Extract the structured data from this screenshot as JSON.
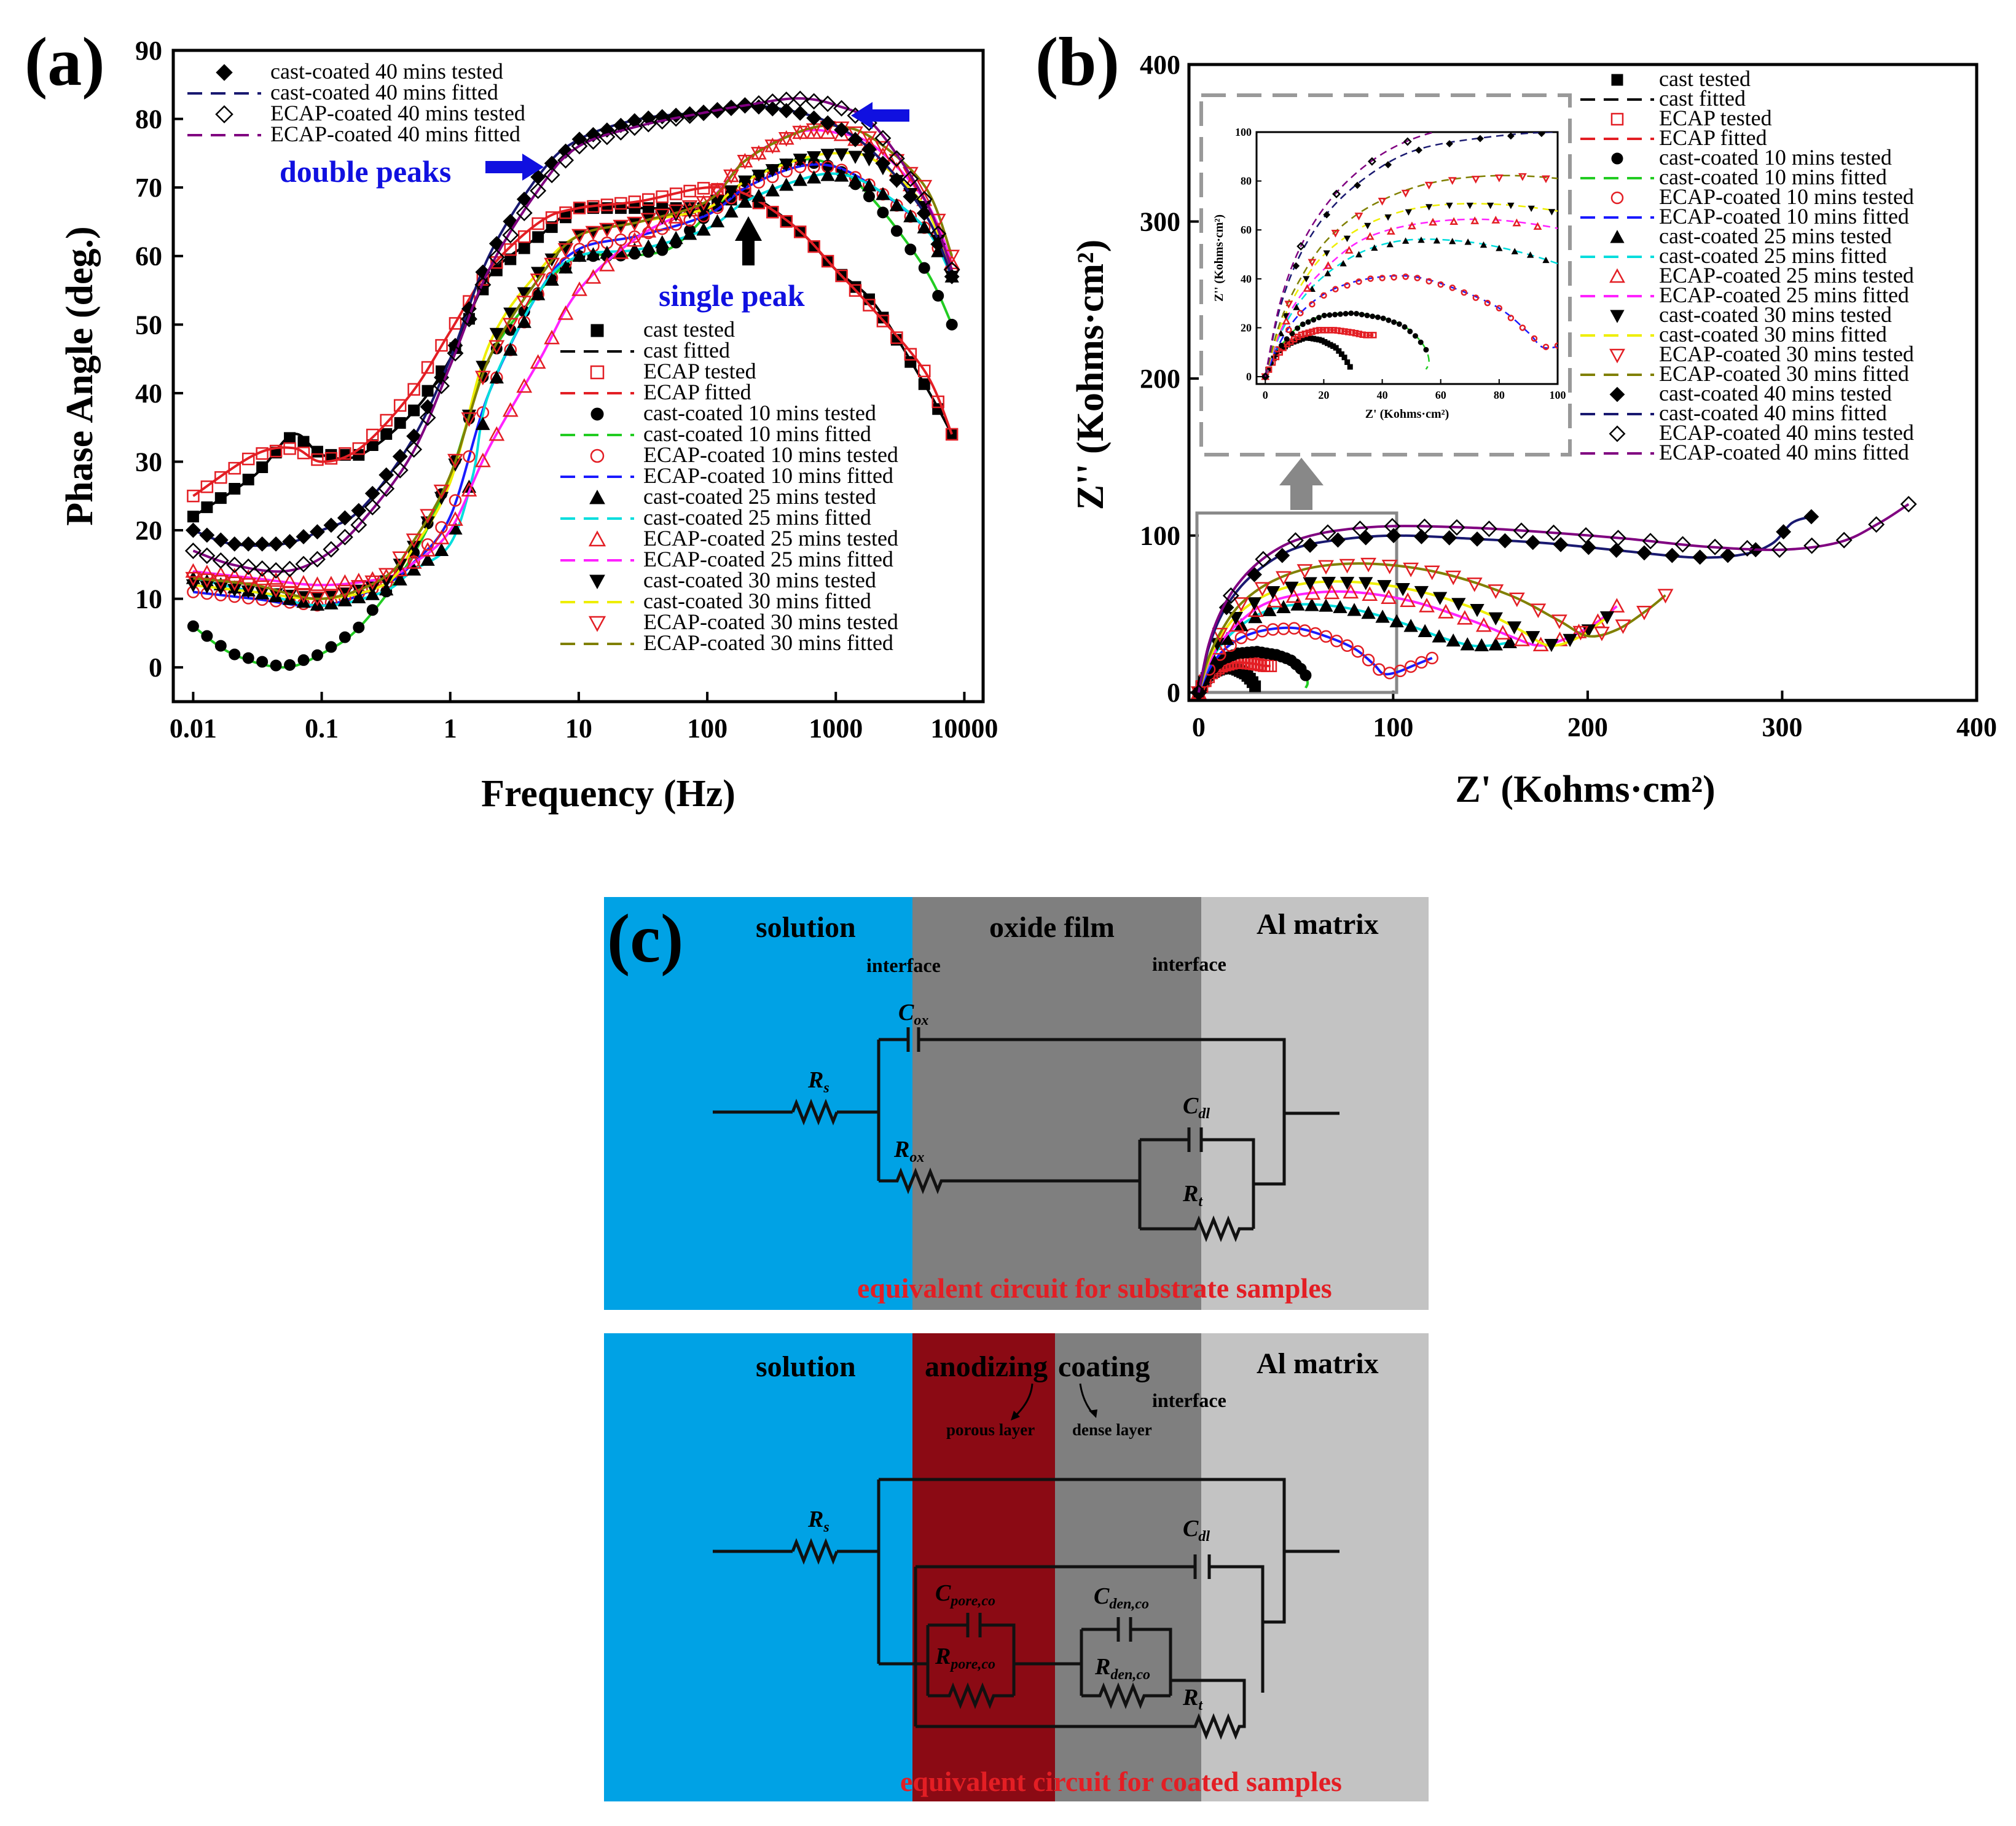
{
  "panels": {
    "a": "(a)",
    "b": "(b)",
    "c": "(c)"
  },
  "chart_data": [
    {
      "id": "a",
      "type": "line",
      "title": "",
      "xlabel": "Frequency (Hz)",
      "ylabel": "Phase  Angle (deg.)",
      "xscale": "log",
      "xlim": [
        0.007,
        14000
      ],
      "ylim": [
        -5,
        90
      ],
      "xticks": [
        {
          "v": 0.01,
          "label": "0.01"
        },
        {
          "v": 0.1,
          "label": "0.1"
        },
        {
          "v": 1,
          "label": "1"
        },
        {
          "v": 10,
          "label": "10"
        },
        {
          "v": 100,
          "label": "100"
        },
        {
          "v": 1000,
          "label": "1000"
        },
        {
          "v": 10000,
          "label": "10000"
        }
      ],
      "yticks": [
        0,
        10,
        20,
        30,
        40,
        50,
        60,
        70,
        80,
        90
      ],
      "legend_top": [
        "cast-coated 40 mins tested",
        "cast-coated 40 mins fitted",
        "ECAP-coated 40 mins tested",
        "ECAP-coated 40 mins fitted"
      ],
      "legend_bottom": [
        "cast tested",
        "cast fitted",
        "ECAP tested",
        "ECAP fitted",
        "cast-coated 10 mins tested",
        "cast-coated 10 mins fitted",
        "ECAP-coated 10 mins tested",
        "ECAP-coated 10 mins fitted",
        "cast-coated 25 mins tested",
        "cast-coated 25 mins fitted",
        "ECAP-coated 25 mins tested",
        "ECAP-coated 25 mins fitted",
        "cast-coated 30 mins tested",
        "cast-coated 30 mins fitted",
        "ECAP-coated 30 mins tested",
        "ECAP-coated 30 mins fitted"
      ],
      "annotations": [
        {
          "text": "double peaks",
          "x": 4,
          "y": 73
        },
        {
          "text": "single peak",
          "x": 200,
          "y": 55
        }
      ],
      "series": [
        {
          "name": "cast",
          "marker": "square-filled",
          "mcolor": "#000000",
          "fcolor": "#000000",
          "fitdash": true,
          "x": [
            0.01,
            0.03,
            0.06,
            0.1,
            0.2,
            0.5,
            1,
            2,
            5,
            10,
            30,
            100,
            200,
            500,
            1000,
            2000,
            5000,
            8000
          ],
          "y": [
            22,
            28,
            34,
            31,
            31,
            37,
            45,
            57,
            63,
            67,
            67,
            67,
            69,
            64,
            58,
            53,
            41,
            34
          ]
        },
        {
          "name": "ECAP",
          "marker": "square-open",
          "mcolor": "#e31e24",
          "fcolor": "#e31e24",
          "fitdash": true,
          "x": [
            0.01,
            0.03,
            0.06,
            0.1,
            0.2,
            0.5,
            1,
            2,
            5,
            10,
            30,
            100,
            200,
            500,
            1000,
            2000,
            5000,
            8000
          ],
          "y": [
            25,
            31,
            32,
            30,
            32,
            40,
            49,
            58,
            65,
            67,
            68,
            70,
            69,
            64,
            58,
            52,
            43,
            34
          ]
        },
        {
          "name": "cast-coated 10 mins",
          "marker": "circle-filled",
          "mcolor": "#000000",
          "fcolor": "#22cc22",
          "fitdash": false,
          "x": [
            0.01,
            0.02,
            0.05,
            0.1,
            0.2,
            0.5,
            1,
            2,
            5,
            10,
            20,
            50,
            100,
            200,
            500,
            1000,
            2000,
            5000,
            8000
          ],
          "y": [
            6,
            2,
            0,
            2,
            6,
            16,
            28,
            45,
            55,
            60,
            60,
            61,
            66,
            71,
            74,
            73,
            68,
            58,
            50
          ]
        },
        {
          "name": "ECAP-coated 10 mins",
          "marker": "circle-open",
          "mcolor": "#e31e24",
          "fcolor": "#1a1aff",
          "fitdash": true,
          "x": [
            0.01,
            0.03,
            0.1,
            0.3,
            0.5,
            1,
            2,
            5,
            10,
            30,
            100,
            200,
            500,
            1000,
            2000,
            5000,
            8000
          ],
          "y": [
            11,
            10,
            9,
            12,
            15,
            22,
            40,
            55,
            61,
            63,
            66,
            70,
            73,
            73,
            70,
            64,
            58
          ]
        },
        {
          "name": "cast-coated 25 mins",
          "marker": "triangle-filled",
          "mcolor": "#000000",
          "fcolor": "#00dddd",
          "fitdash": true,
          "x": [
            0.01,
            0.03,
            0.1,
            0.3,
            0.5,
            1,
            1.5,
            2,
            5,
            10,
            30,
            100,
            200,
            500,
            1000,
            2000,
            5000,
            8000
          ],
          "y": [
            13,
            11,
            9,
            11,
            14,
            18,
            28,
            40,
            55,
            60,
            61,
            64,
            68,
            71,
            72,
            70,
            64,
            57
          ]
        },
        {
          "name": "ECAP-coated 25 mins",
          "marker": "triangle-open",
          "mcolor": "#e31e24",
          "fcolor": "#ff22ff",
          "fitdash": true,
          "x": [
            0.01,
            0.03,
            0.1,
            0.3,
            0.5,
            1,
            2,
            5,
            10,
            30,
            100,
            200,
            500,
            1000,
            2000,
            5000,
            8000
          ],
          "y": [
            14,
            13,
            12,
            13,
            15,
            20,
            32,
            45,
            55,
            63,
            68,
            74,
            78,
            78,
            76,
            68,
            59
          ]
        },
        {
          "name": "cast-coated 30 mins",
          "marker": "triangle-down-filled",
          "mcolor": "#000000",
          "fcolor": "#eeee00",
          "fitdash": false,
          "x": [
            0.01,
            0.03,
            0.1,
            0.3,
            0.5,
            1,
            2,
            5,
            10,
            30,
            100,
            200,
            500,
            1000,
            2000,
            5000,
            8000
          ],
          "y": [
            12,
            11,
            10,
            12,
            17,
            27,
            47,
            58,
            63,
            65,
            67,
            71,
            74,
            75,
            74,
            67,
            57
          ]
        },
        {
          "name": "ECAP-coated 30 mins",
          "marker": "triangle-down-open",
          "mcolor": "#e31e24",
          "fcolor": "#808000",
          "fitdash": true,
          "x": [
            0.01,
            0.03,
            0.1,
            0.3,
            0.5,
            1,
            2,
            5,
            10,
            30,
            100,
            200,
            500,
            1000,
            2000,
            5000,
            8000
          ],
          "y": [
            13,
            12,
            10,
            13,
            18,
            28,
            45,
            57,
            63,
            65,
            68,
            74,
            78,
            79,
            77,
            70,
            60
          ]
        },
        {
          "name": "cast-coated 40 mins",
          "marker": "diamond-filled",
          "mcolor": "#000000",
          "fcolor": "#191970",
          "fitdash": true,
          "x": [
            0.01,
            0.02,
            0.05,
            0.1,
            0.2,
            0.5,
            1,
            2,
            5,
            10,
            30,
            100,
            200,
            500,
            1000,
            2000,
            5000,
            8000
          ],
          "y": [
            20,
            18,
            18,
            20,
            23,
            33,
            45,
            60,
            72,
            77,
            80,
            81,
            82,
            81,
            79,
            75,
            66,
            57
          ]
        },
        {
          "name": "ECAP-coated 40 mins",
          "marker": "diamond-open",
          "mcolor": "#000000",
          "fcolor": "#800080",
          "fitdash": true,
          "x": [
            0.01,
            0.02,
            0.05,
            0.1,
            0.2,
            0.5,
            1,
            2,
            5,
            10,
            30,
            100,
            200,
            500,
            1000,
            2000,
            5000,
            8000
          ],
          "y": [
            17,
            15,
            14,
            16,
            21,
            31,
            44,
            58,
            70,
            76,
            79,
            81,
            82,
            83,
            82,
            79,
            68,
            58
          ]
        }
      ]
    },
    {
      "id": "b",
      "type": "scatter",
      "title": "",
      "xlabel": "Z' (Kohms·cm²)",
      "ylabel": "Z'' (Kohms·cm²)",
      "xlim": [
        -5,
        400
      ],
      "ylim": [
        -5,
        400
      ],
      "xticks": [
        0,
        100,
        200,
        300,
        400
      ],
      "yticks": [
        0,
        100,
        200,
        300,
        400
      ],
      "legend": [
        "cast tested",
        "cast fitted",
        "ECAP tested",
        "ECAP fitted",
        "cast-coated 10 mins tested",
        "cast-coated 10 mins fitted",
        "ECAP-coated 10 mins tested",
        "ECAP-coated 10 mins fitted",
        "cast-coated 25 mins tested",
        "cast-coated 25 mins fitted",
        "ECAP-coated 25 mins tested",
        "ECAP-coated 25 mins fitted",
        "cast-coated 30 mins tested",
        "cast-coated 30 mins fitted",
        "ECAP-coated 30 mins tested",
        "ECAP-coated 30 mins fitted",
        "cast-coated 40 mins tested",
        "cast-coated 40 mins fitted",
        "ECAP-coated 40 mins tested",
        "ECAP-coated 40 mins fitted"
      ],
      "inset": {
        "xlabel": "Z' (Kohms·cm²)",
        "ylabel": "Z'' (Kohms·cm²)",
        "xlim": [
          -3,
          100
        ],
        "ylim": [
          -3,
          100
        ],
        "xticks": [
          0,
          20,
          40,
          60,
          80,
          100
        ],
        "yticks": [
          0,
          20,
          40,
          60,
          80,
          100
        ]
      },
      "series": [
        {
          "name": "cast",
          "marker": "square-filled",
          "mcolor": "#000000",
          "fcolor": "#000000",
          "x": [
            0,
            2,
            5,
            9,
            14,
            19,
            24,
            27,
            29
          ],
          "y": [
            0,
            6,
            11,
            14,
            16,
            15,
            12,
            8,
            4
          ]
        },
        {
          "name": "ECAP",
          "marker": "square-open",
          "mcolor": "#e31e24",
          "fcolor": "#e31e24",
          "x": [
            0,
            3,
            7,
            12,
            18,
            24,
            30,
            34,
            37
          ],
          "y": [
            0,
            7,
            13,
            17,
            19,
            19,
            18,
            17,
            17
          ]
        },
        {
          "name": "cast-coated 10 mins",
          "marker": "circle-filled",
          "mcolor": "#000000",
          "fcolor": "#22cc22",
          "x": [
            0,
            3,
            7,
            12,
            20,
            30,
            40,
            47,
            52,
            55,
            56,
            55
          ],
          "y": [
            0,
            9,
            15,
            21,
            25,
            26,
            24,
            21,
            16,
            11,
            6,
            3
          ]
        },
        {
          "name": "ECAP-coated 10 mins",
          "marker": "circle-open",
          "mcolor": "#e31e24",
          "fcolor": "#1a1aff",
          "x": [
            0,
            5,
            12,
            22,
            35,
            50,
            65,
            80,
            90,
            95,
            102,
            110,
            120
          ],
          "y": [
            0,
            14,
            26,
            35,
            40,
            41,
            36,
            28,
            18,
            12,
            13,
            17,
            22
          ]
        },
        {
          "name": "cast-coated 25 mins",
          "marker": "triangle-filled",
          "mcolor": "#000000",
          "fcolor": "#00dddd",
          "x": [
            0,
            5,
            12,
            22,
            35,
            50,
            70,
            90,
            110,
            125,
            140,
            150,
            160
          ],
          "y": [
            0,
            17,
            31,
            43,
            52,
            56,
            55,
            50,
            42,
            35,
            30,
            30,
            32
          ]
        },
        {
          "name": "ECAP-coated 25 mins",
          "marker": "triangle-open",
          "mcolor": "#e31e24",
          "fcolor": "#ff22ff",
          "x": [
            0,
            5,
            12,
            22,
            35,
            55,
            80,
            110,
            140,
            160,
            175,
            190,
            205,
            215
          ],
          "y": [
            0,
            18,
            33,
            46,
            57,
            63,
            64,
            58,
            46,
            36,
            30,
            35,
            45,
            55
          ]
        },
        {
          "name": "cast-coated 30 mins",
          "marker": "triangle-down-filled",
          "mcolor": "#000000",
          "fcolor": "#eeee00",
          "x": [
            0,
            5,
            12,
            22,
            38,
            58,
            85,
            115,
            145,
            165,
            180,
            195,
            210
          ],
          "y": [
            0,
            20,
            37,
            52,
            64,
            70,
            70,
            64,
            52,
            40,
            30,
            35,
            48
          ]
        },
        {
          "name": "ECAP-coated 30 mins",
          "marker": "triangle-down-open",
          "mcolor": "#e31e24",
          "fcolor": "#808000",
          "x": [
            0,
            5,
            12,
            22,
            38,
            60,
            90,
            125,
            160,
            185,
            200,
            215,
            230,
            240
          ],
          "y": [
            0,
            22,
            40,
            57,
            71,
            80,
            82,
            76,
            62,
            46,
            36,
            40,
            52,
            62
          ]
        },
        {
          "name": "cast-coated 40 mins",
          "marker": "diamond-filled",
          "mcolor": "#000000",
          "fcolor": "#191970",
          "x": [
            0,
            5,
            12,
            22,
            35,
            50,
            70,
            100,
            140,
            180,
            220,
            255,
            280,
            295,
            305,
            315
          ],
          "y": [
            0,
            28,
            50,
            68,
            82,
            92,
            97,
            100,
            98,
            95,
            90,
            86,
            88,
            95,
            108,
            112
          ]
        },
        {
          "name": "ECAP-coated 40 mins",
          "marker": "diamond-open",
          "mcolor": "#000000",
          "fcolor": "#800080",
          "x": [
            0,
            5,
            12,
            22,
            35,
            50,
            70,
            100,
            140,
            180,
            220,
            260,
            300,
            330,
            350,
            365
          ],
          "y": [
            0,
            30,
            53,
            72,
            87,
            97,
            103,
            106,
            105,
            102,
            98,
            93,
            91,
            96,
            108,
            120
          ]
        }
      ]
    }
  ],
  "circuit": {
    "top": {
      "regions": {
        "solution": "solution",
        "oxide": "oxide film",
        "matrix": "Al matrix"
      },
      "interface_left": "interface",
      "interface_right": "interface",
      "components": {
        "Rs_main": "R",
        "Rs_sub": "s",
        "Cox_main": "C",
        "Cox_sub": "ox",
        "Rox_main": "R",
        "Rox_sub": "ox",
        "Cdl_main": "C",
        "Cdl_sub": "dl",
        "Rt_main": "R",
        "Rt_sub": "t"
      },
      "caption": "equivalent circuit for substrate samples"
    },
    "bottom": {
      "regions": {
        "solution": "solution",
        "anodizing": "anodizing",
        "coating": "coating",
        "matrix": "Al matrix"
      },
      "porous": "porous layer",
      "dense": "dense layer",
      "interface": "interface",
      "components": {
        "Rs_main": "R",
        "Rs_sub": "s",
        "Cdl_main": "C",
        "Cdl_sub": "dl",
        "Cpore_main": "C",
        "Cpore_sub": "pore,co",
        "Rpore_main": "R",
        "Rpore_sub": "pore,co",
        "Cden_main": "C",
        "Cden_sub": "den,co",
        "Rden_main": "R",
        "Rden_sub": "den,co",
        "Rt_main": "R",
        "Rt_sub": "t"
      },
      "caption": "equivalent circuit for coated samples"
    }
  }
}
